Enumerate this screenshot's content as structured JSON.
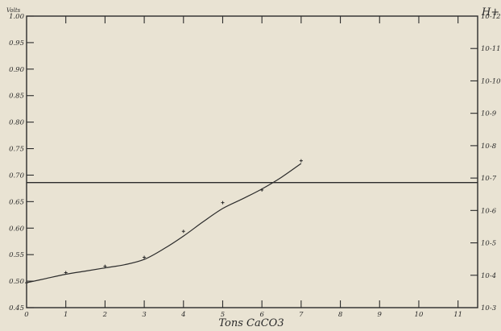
{
  "chart_data": {
    "type": "line",
    "title": "",
    "xlabel": "Tons CaCO3",
    "ylabel_left": "Volts",
    "ylabel_right": "H+",
    "x_ticks": [
      "0",
      "1",
      "2",
      "3",
      "4",
      "5",
      "6",
      "7",
      "8",
      "9",
      "10",
      "11"
    ],
    "y_ticks": [
      "0.45",
      "0.50",
      "0.55",
      "0.60",
      "0.65",
      "0.70",
      "0.75",
      "0.80",
      "0.85",
      "0.90",
      "0.95",
      "1.00"
    ],
    "y_right_ticks": [
      "10-3",
      "10-4",
      "10-5",
      "10-6",
      "10-7",
      "10-8",
      "10-9",
      "10-10",
      "10-11",
      "10-12"
    ],
    "xlim": [
      0,
      11.5
    ],
    "ylim": [
      0.45,
      1.0
    ],
    "series": [
      {
        "type": "scatter",
        "x": [
          0,
          1,
          2,
          3,
          4,
          5,
          6,
          7
        ],
        "y": [
          0.497,
          0.516,
          0.528,
          0.545,
          0.594,
          0.648,
          0.672,
          0.727
        ]
      },
      {
        "type": "line",
        "x": [
          0,
          0.5,
          1,
          1.5,
          2,
          2.5,
          3,
          3.5,
          4,
          4.5,
          5,
          5.5,
          6,
          6.5,
          7
        ],
        "y": [
          0.497,
          0.505,
          0.513,
          0.519,
          0.525,
          0.531,
          0.541,
          0.561,
          0.585,
          0.612,
          0.637,
          0.655,
          0.674,
          0.696,
          0.722
        ]
      }
    ],
    "reference_line": {
      "y": 0.686
    },
    "grid": false,
    "legend": "none",
    "colors": {
      "ink": "#2b2b2b",
      "paper": "#e9e3d3"
    }
  }
}
